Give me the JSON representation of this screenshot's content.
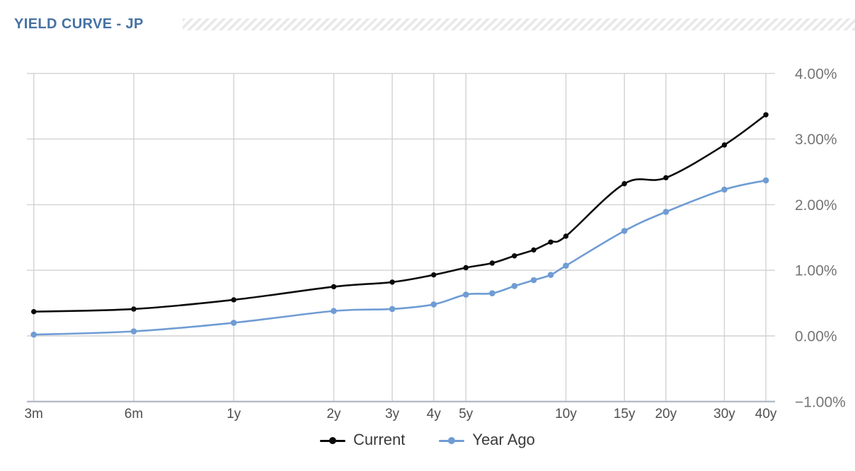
{
  "header": {
    "title": "YIELD CURVE - JP"
  },
  "colors": {
    "title_color": "#4672a3",
    "stripe": "#e8e8e8",
    "gridline": "#d2d2d2",
    "axis_line": "#b4bcc6",
    "x_label": "#4f4f4f",
    "y_label": "#757575",
    "legend_text": "#3b3b3b"
  },
  "legend": {
    "items": [
      {
        "label": "Current",
        "color": "#0a0a0a"
      },
      {
        "label": "Year Ago",
        "color": "#6f9cd4"
      }
    ]
  },
  "chart_data": {
    "type": "line",
    "title": "YIELD CURVE - JP",
    "xlabel": "",
    "ylabel": "",
    "grid": true,
    "legend_position": "bottom",
    "x_axis": {
      "scale": "log",
      "tick_labels": [
        "3m",
        "6m",
        "1y",
        "2y",
        "3y",
        "4y",
        "5y",
        "10y",
        "15y",
        "20y",
        "30y",
        "40y"
      ],
      "tick_years": [
        0.25,
        0.5,
        1,
        2,
        3,
        4,
        5,
        10,
        15,
        20,
        30,
        40
      ]
    },
    "y_axis": {
      "side": "right",
      "tick_labels": [
        "4.00%",
        "3.00%",
        "2.00%",
        "1.00%",
        "0.00%",
        "−1.00%"
      ],
      "tick_values": [
        4,
        3,
        2,
        1,
        0,
        -1
      ],
      "range": [
        -1,
        4
      ],
      "unit": "%"
    },
    "maturity_names": [
      "3m",
      "6m",
      "1y",
      "2y",
      "3y",
      "4y",
      "5y",
      "6y",
      "7y",
      "8y",
      "9y",
      "10y",
      "15y",
      "20y",
      "30y",
      "40y"
    ],
    "maturities_years": [
      0.25,
      0.5,
      1,
      2,
      3,
      4,
      5,
      6,
      7,
      8,
      9,
      10,
      15,
      20,
      30,
      40
    ],
    "series": [
      {
        "name": "Current",
        "color": "#0a0a0a",
        "marker_radius": 3.7,
        "values": [
          0.37,
          0.41,
          0.55,
          0.75,
          0.82,
          0.93,
          1.04,
          1.11,
          1.22,
          1.31,
          1.43,
          1.52,
          2.32,
          2.41,
          2.91,
          3.37
        ]
      },
      {
        "name": "Year Ago",
        "color": "#6f9cd4",
        "marker_radius": 4.3,
        "values": [
          0.02,
          0.07,
          0.2,
          0.38,
          0.41,
          0.48,
          0.63,
          0.65,
          0.76,
          0.85,
          0.93,
          1.07,
          1.6,
          1.89,
          2.23,
          2.37
        ]
      }
    ]
  }
}
